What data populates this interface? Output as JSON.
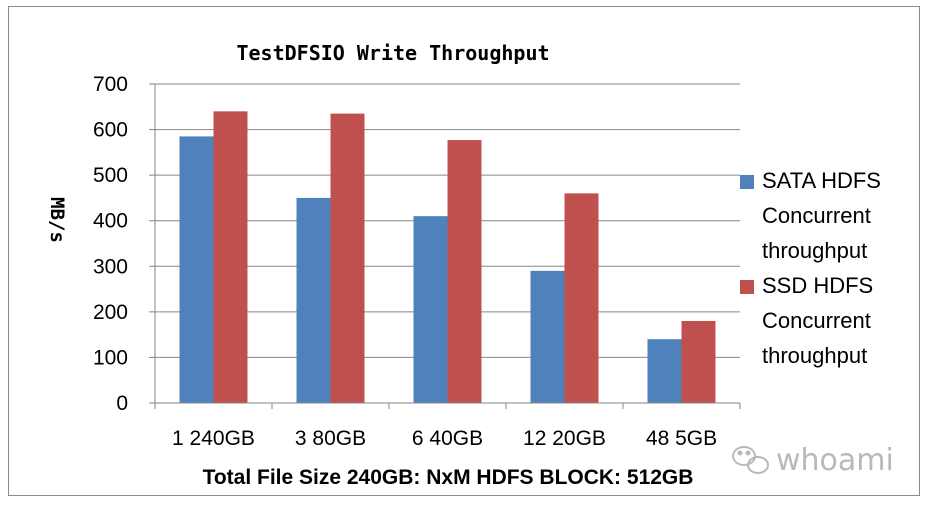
{
  "colors": {
    "sata": "#4f81bd",
    "ssd": "#c0504d",
    "grid": "#868686",
    "watermark": "#b9b9b9"
  },
  "watermark": {
    "text": "whoami",
    "icon": "wechat-icon"
  },
  "chart_data": {
    "type": "bar",
    "title": "TestDFSIO Write Throughput",
    "xlabel": "Total File Size 240GB: NxM HDFS BLOCK: 512GB",
    "ylabel": "MB/s",
    "ylim": [
      0,
      700
    ],
    "yticks": [
      0,
      100,
      200,
      300,
      400,
      500,
      600,
      700
    ],
    "grid": true,
    "legend_position": "right",
    "categories": [
      "1 240GB",
      "3 80GB",
      "6 40GB",
      "12 20GB",
      "48 5GB"
    ],
    "series": [
      {
        "name": "SATA HDFS Concurrent throughput",
        "legend_lines": [
          "SATA HDFS",
          "Concurrent",
          "throughput"
        ],
        "values": [
          585,
          450,
          410,
          290,
          140
        ]
      },
      {
        "name": "SSD HDFS Concurrent throughput",
        "legend_lines": [
          "SSD HDFS",
          "Concurrent",
          "throughput"
        ],
        "values": [
          640,
          635,
          577,
          460,
          180
        ]
      }
    ]
  }
}
